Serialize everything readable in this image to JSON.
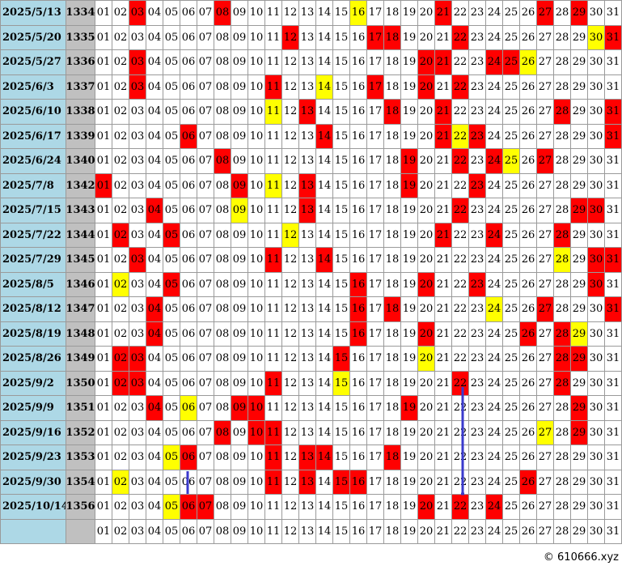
{
  "numbers": [
    "01",
    "02",
    "03",
    "04",
    "05",
    "06",
    "07",
    "08",
    "09",
    "10",
    "11",
    "12",
    "13",
    "14",
    "15",
    "16",
    "17",
    "18",
    "19",
    "20",
    "21",
    "22",
    "23",
    "24",
    "25",
    "26",
    "27",
    "28",
    "29",
    "30",
    "31"
  ],
  "rows": [
    {
      "date": "2025/5/13",
      "issue": "1334",
      "red": [
        "03",
        "08",
        "21",
        "27",
        "29"
      ],
      "yellow": [
        "16"
      ]
    },
    {
      "date": "2025/5/20",
      "issue": "1335",
      "red": [
        "12",
        "17",
        "18",
        "22",
        "31"
      ],
      "yellow": [
        "30"
      ]
    },
    {
      "date": "2025/5/27",
      "issue": "1336",
      "red": [
        "03",
        "20",
        "21",
        "24",
        "25"
      ],
      "yellow": [
        "26"
      ]
    },
    {
      "date": "2025/6/3",
      "issue": "1337",
      "red": [
        "03",
        "11",
        "17",
        "20",
        "22"
      ],
      "yellow": [
        "14"
      ]
    },
    {
      "date": "2025/6/10",
      "issue": "1338",
      "red": [
        "13",
        "18",
        "21",
        "28",
        "31"
      ],
      "yellow": [
        "11"
      ]
    },
    {
      "date": "2025/6/17",
      "issue": "1339",
      "red": [
        "06",
        "14",
        "21",
        "23",
        "31"
      ],
      "yellow": [
        "22"
      ]
    },
    {
      "date": "2025/6/24",
      "issue": "1340",
      "red": [
        "08",
        "19",
        "22",
        "24",
        "27"
      ],
      "yellow": [
        "25"
      ]
    },
    {
      "date": "2025/7/8",
      "issue": "1342",
      "red": [
        "01",
        "09",
        "13",
        "19",
        "23"
      ],
      "yellow": [
        "11"
      ]
    },
    {
      "date": "2025/7/15",
      "issue": "1343",
      "red": [
        "04",
        "13",
        "22",
        "29",
        "30"
      ],
      "yellow": [
        "09"
      ]
    },
    {
      "date": "2025/7/22",
      "issue": "1344",
      "red": [
        "02",
        "05",
        "21",
        "24",
        "28"
      ],
      "yellow": [
        "12"
      ]
    },
    {
      "date": "2025/7/29",
      "issue": "1345",
      "red": [
        "03",
        "11",
        "14",
        "30",
        "31"
      ],
      "yellow": [
        "28"
      ]
    },
    {
      "date": "2025/8/5",
      "issue": "1346",
      "red": [
        "05",
        "16",
        "20",
        "23",
        "30"
      ],
      "yellow": [
        "02"
      ]
    },
    {
      "date": "2025/8/12",
      "issue": "1347",
      "red": [
        "04",
        "16",
        "18",
        "27",
        "31"
      ],
      "yellow": [
        "24"
      ]
    },
    {
      "date": "2025/8/19",
      "issue": "1348",
      "red": [
        "04",
        "16",
        "20",
        "26",
        "28"
      ],
      "yellow": [
        "29"
      ]
    },
    {
      "date": "2025/8/26",
      "issue": "1349",
      "red": [
        "02",
        "03",
        "15",
        "28",
        "29"
      ],
      "yellow": [
        "20"
      ]
    },
    {
      "date": "2025/9/2",
      "issue": "1350",
      "red": [
        "02",
        "03",
        "11",
        "22",
        "28"
      ],
      "yellow": [
        "15"
      ]
    },
    {
      "date": "2025/9/9",
      "issue": "1351",
      "red": [
        "04",
        "09",
        "10",
        "19",
        "29"
      ],
      "yellow": [
        "06"
      ]
    },
    {
      "date": "2025/9/16",
      "issue": "1352",
      "red": [
        "08",
        "10",
        "11",
        "29"
      ],
      "yellow": [
        "27"
      ]
    },
    {
      "date": "2025/9/23",
      "issue": "1353",
      "red": [
        "06",
        "11",
        "13",
        "14",
        "18"
      ],
      "yellow": [
        "05"
      ]
    },
    {
      "date": "2025/9/30",
      "issue": "1354",
      "red": [
        "11",
        "13",
        "15",
        "16",
        "26"
      ],
      "yellow": [
        "02"
      ]
    },
    {
      "date": "2025/10/14",
      "issue": "1356",
      "red": [
        "06",
        "07",
        "20",
        "22",
        "24"
      ],
      "yellow": [
        "05"
      ]
    }
  ],
  "copyright": "© 610666.xyz"
}
